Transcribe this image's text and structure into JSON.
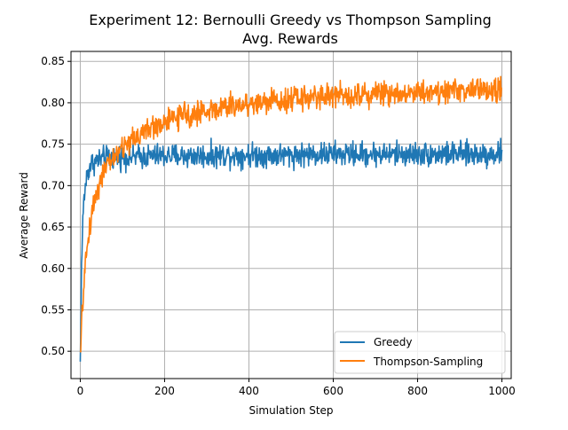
{
  "chart_data": {
    "type": "line",
    "title": "Experiment 12: Bernoulli Greedy vs Thompson Sampling",
    "subtitle": "Avg. Rewards",
    "xlabel": "Simulation Step",
    "ylabel": "Average Reward",
    "xlim": [
      -22,
      1022
    ],
    "ylim": [
      0.467,
      0.862
    ],
    "x_ticks": [
      0,
      200,
      400,
      600,
      800,
      1000
    ],
    "y_ticks": [
      0.5,
      0.55,
      0.6,
      0.65,
      0.7,
      0.75,
      0.8,
      0.85
    ],
    "grid": true,
    "legend_position": "lower-right",
    "series": [
      {
        "name": "Greedy",
        "color": "#1f77b4",
        "x": [
          0,
          1,
          2,
          3,
          5,
          7,
          10,
          15,
          20,
          25,
          30,
          40,
          50,
          60,
          80,
          100,
          120,
          150,
          180,
          200,
          250,
          300,
          350,
          400,
          450,
          500,
          550,
          600,
          650,
          700,
          750,
          800,
          850,
          900,
          950,
          980,
          1000
        ],
        "values": [
          0.485,
          0.52,
          0.56,
          0.6,
          0.64,
          0.67,
          0.69,
          0.71,
          0.72,
          0.725,
          0.728,
          0.73,
          0.732,
          0.733,
          0.734,
          0.735,
          0.735,
          0.735,
          0.736,
          0.736,
          0.736,
          0.736,
          0.737,
          0.737,
          0.737,
          0.737,
          0.738,
          0.738,
          0.738,
          0.738,
          0.738,
          0.738,
          0.738,
          0.738,
          0.738,
          0.738,
          0.74
        ],
        "noise": 0.012,
        "point_count": 1000
      },
      {
        "name": "Thompson-Sampling",
        "color": "#ff7f0e",
        "x": [
          0,
          1,
          2,
          3,
          5,
          7,
          10,
          15,
          20,
          25,
          30,
          40,
          50,
          60,
          80,
          100,
          120,
          150,
          180,
          200,
          250,
          300,
          350,
          400,
          450,
          500,
          550,
          600,
          650,
          700,
          750,
          800,
          850,
          900,
          950,
          980,
          1000
        ],
        "values": [
          0.49,
          0.5,
          0.515,
          0.53,
          0.55,
          0.57,
          0.59,
          0.62,
          0.64,
          0.66,
          0.675,
          0.695,
          0.71,
          0.72,
          0.735,
          0.745,
          0.755,
          0.765,
          0.772,
          0.777,
          0.785,
          0.79,
          0.795,
          0.799,
          0.802,
          0.805,
          0.807,
          0.809,
          0.81,
          0.811,
          0.812,
          0.813,
          0.814,
          0.815,
          0.815,
          0.815,
          0.815
        ],
        "noise": 0.012,
        "point_count": 1000
      }
    ]
  }
}
